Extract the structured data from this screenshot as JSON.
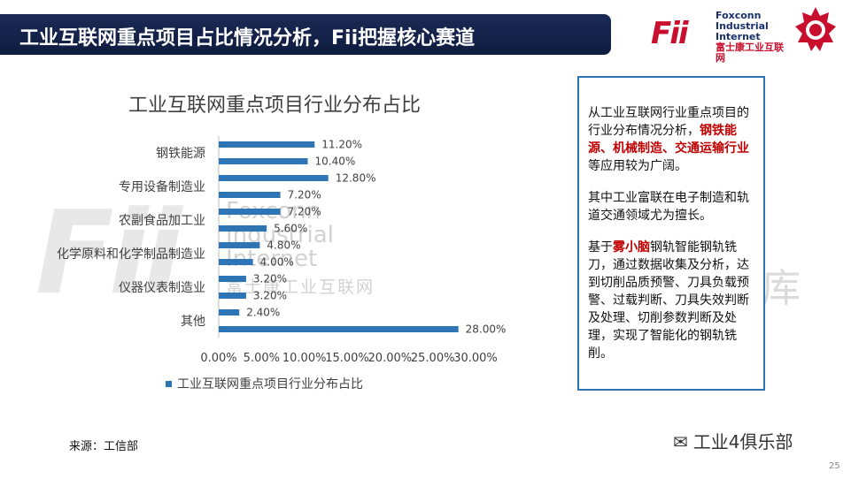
{
  "header": {
    "title": "工业互联网重点项目占比情况分析，Fii把握核心赛道"
  },
  "logo": {
    "mark": "Fii",
    "line1": "Foxconn",
    "line2": "Industrial",
    "line3": "Internet",
    "line4": "富士康工业互联网"
  },
  "watermark": {
    "logo": "Fii",
    "line1": "Foxconn",
    "line2": "Industrial",
    "line3": "Internet",
    "cn": "富士康工业互联网",
    "ku": "库"
  },
  "chart_data": {
    "type": "bar",
    "orientation": "horizontal",
    "title": "工业互联网重点项目行业分布占比",
    "y_tick_labels": [
      "钢铁能源",
      "专用设备制造业",
      "农副食品加工业",
      "化学原料和化学制品制造业",
      "仪器仪表制造业",
      "其他"
    ],
    "values": [
      11.2,
      10.4,
      12.8,
      7.2,
      7.2,
      5.6,
      4.8,
      4.0,
      3.2,
      3.2,
      2.4,
      28.0
    ],
    "data_labels": [
      "11.20%",
      "10.40%",
      "12.80%",
      "7.20%",
      "7.20%",
      "5.60%",
      "4.80%",
      "4.00%",
      "3.20%",
      "3.20%",
      "2.40%",
      "28.00%"
    ],
    "x_ticks": [
      "0.00%",
      "5.00%",
      "10.00%",
      "15.00%",
      "20.00%",
      "25.00%",
      "30.00%"
    ],
    "xlim": [
      0,
      30
    ],
    "series": [
      {
        "name": "工业互联网重点项目行业分布占比",
        "values": [
          11.2,
          10.4,
          12.8,
          7.2,
          7.2,
          5.6,
          4.8,
          4.0,
          3.2,
          3.2,
          2.4,
          28.0
        ]
      }
    ],
    "legend_position": "bottom",
    "grid": false,
    "bar_color": "#2e75b6"
  },
  "textbox": {
    "p1_a": "从工业互联网行业重点项目的行业分布情况分析，",
    "p1_b": "钢铁能源、机械制造、交通运输行业",
    "p1_c": "等应用较为广阔。",
    "p2": "其中工业富联在电子制造和轨道交通领域尤为擅长。",
    "p3_a": "基于",
    "p3_b": "雾小脑",
    "p3_c": "钢轨智能钢轨铣刀，通过数据收集及分析，达到切削品质预警、刀具负载预警、过载判断、刀具失效判断及处理、切削参数判断及处理，实现了智能化的钢轨铣削。"
  },
  "footer": {
    "source": "来源：工信部",
    "wechat": "工业4俱乐部",
    "page": "25"
  },
  "colors": {
    "header_bg": "#0f1c40",
    "accent_red": "#c00000",
    "border_blue": "#2e74b5"
  }
}
